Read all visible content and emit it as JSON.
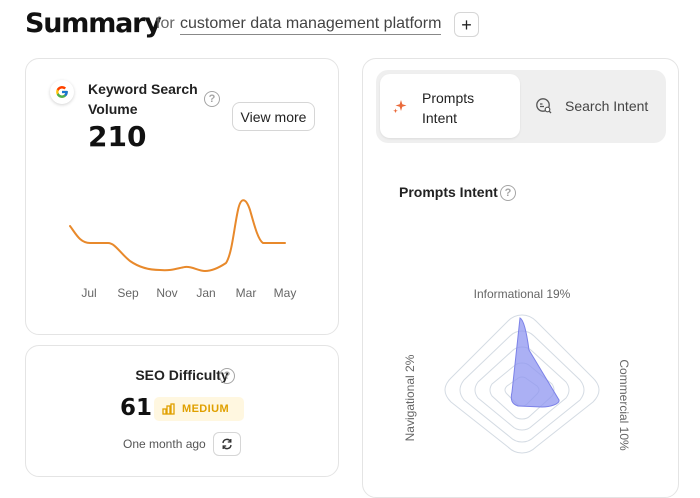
{
  "header": {
    "title": "Summary",
    "for_label": "for",
    "topic": "customer data management platform",
    "add_label": "+"
  },
  "keyword_card": {
    "title": "Keyword Search Volume",
    "value": "210",
    "view_more_label": "View more",
    "help_label": "?",
    "icon": "google-icon",
    "months": [
      "Jul",
      "Sep",
      "Nov",
      "Jan",
      "Mar",
      "May"
    ],
    "trend_color": "#e8892b"
  },
  "seo_card": {
    "title": "SEO Difficulty",
    "help_label": "?",
    "value": "61",
    "level": "MEDIUM",
    "level_color": "#e0a000",
    "updated": "One month ago",
    "refresh_icon": "refresh-icon"
  },
  "intent_card": {
    "tabs": [
      {
        "label": "Prompts Intent",
        "icon": "sparkle-icon",
        "active": true
      },
      {
        "label": "Search Intent",
        "icon": "search-intent-icon",
        "active": false
      }
    ],
    "section_title": "Prompts Intent",
    "help_label": "?",
    "radar": {
      "axes": [
        {
          "label": "Informational 19%",
          "value": 19
        },
        {
          "label": "Commercial 10%",
          "value": 10
        },
        {
          "label": "Navigational 2%",
          "value": 2
        }
      ],
      "fill_color": "#8f96f0"
    }
  }
}
